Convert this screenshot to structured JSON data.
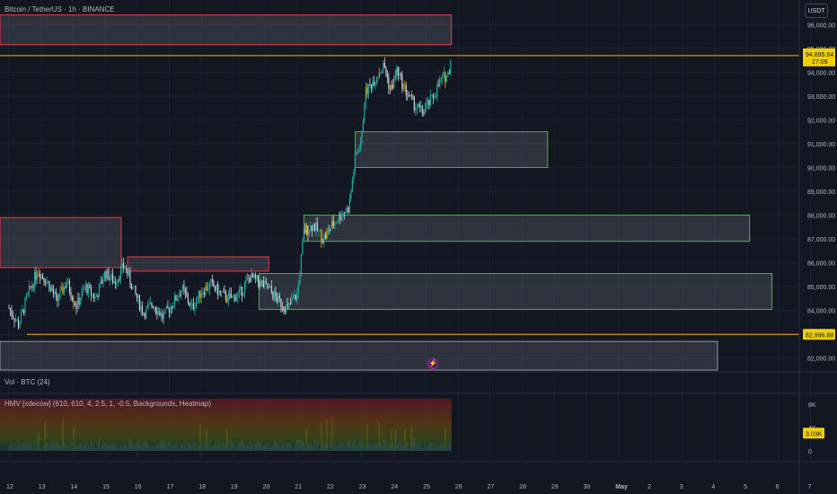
{
  "header": {
    "symbol": "Bitcoin / TetherUS · 1h · BINANCE",
    "currency_button": "USDT"
  },
  "volume_pane": {
    "label": "Vol · BTC (24)"
  },
  "hmv_pane": {
    "label": "HMV [xdecow] (610, 610, 4, 2.5, 1, -0.5, Backgrounds, Heatmap)"
  },
  "price_tags": {
    "last_price": "94,695.64",
    "countdown": "27:09",
    "support_level": "82,996.88",
    "volume_value": "3.03K"
  },
  "colors": {
    "background": "#131722",
    "up": "#26a69a",
    "down": "#c8ccd6",
    "supply_zone": "#f23645",
    "demand_zone": "#4caf50",
    "level_line": "#f0b90b",
    "tag_bg": "#f0d000"
  },
  "chart_data": [
    {
      "type": "candlestick",
      "ylim": [
        81500,
        96500
      ],
      "x_ticks": [
        "12",
        "13",
        "14",
        "15",
        "16",
        "17",
        "18",
        "19",
        "20",
        "21",
        "22",
        "23",
        "24",
        "25",
        "26",
        "27",
        "28",
        "29",
        "30",
        "May",
        "2",
        "3",
        "4",
        "5",
        "6",
        "7"
      ],
      "y_ticks": [
        "96,000.00",
        "95,000.00",
        "94,000.00",
        "93,000.00",
        "92,000.00",
        "91,000.00",
        "90,000.00",
        "89,000.00",
        "88,000.00",
        "87,000.00",
        "86,000.00",
        "85,000.00",
        "84,000.00",
        "83,000.00",
        "82,000.00"
      ],
      "price_path": [
        {
          "day": 12.0,
          "price": 84100
        },
        {
          "day": 12.3,
          "price": 83400
        },
        {
          "day": 12.6,
          "price": 84700
        },
        {
          "day": 12.9,
          "price": 85700
        },
        {
          "day": 13.2,
          "price": 85200
        },
        {
          "day": 13.5,
          "price": 84400
        },
        {
          "day": 13.8,
          "price": 85200
        },
        {
          "day": 14.1,
          "price": 84200
        },
        {
          "day": 14.4,
          "price": 85000
        },
        {
          "day": 14.7,
          "price": 84500
        },
        {
          "day": 15.0,
          "price": 85600
        },
        {
          "day": 15.3,
          "price": 85200
        },
        {
          "day": 15.6,
          "price": 85900
        },
        {
          "day": 15.9,
          "price": 84800
        },
        {
          "day": 16.2,
          "price": 83900
        },
        {
          "day": 16.5,
          "price": 84300
        },
        {
          "day": 16.8,
          "price": 83700
        },
        {
          "day": 17.1,
          "price": 84300
        },
        {
          "day": 17.4,
          "price": 84900
        },
        {
          "day": 17.7,
          "price": 84100
        },
        {
          "day": 18.0,
          "price": 84800
        },
        {
          "day": 18.3,
          "price": 85100
        },
        {
          "day": 18.6,
          "price": 84700
        },
        {
          "day": 18.9,
          "price": 84500
        },
        {
          "day": 19.2,
          "price": 84700
        },
        {
          "day": 19.5,
          "price": 85400
        },
        {
          "day": 19.8,
          "price": 85200
        },
        {
          "day": 20.1,
          "price": 84900
        },
        {
          "day": 20.4,
          "price": 84400
        },
        {
          "day": 20.7,
          "price": 84100
        },
        {
          "day": 21.0,
          "price": 84700
        },
        {
          "day": 21.2,
          "price": 87300
        },
        {
          "day": 21.5,
          "price": 87600
        },
        {
          "day": 21.8,
          "price": 87000
        },
        {
          "day": 22.1,
          "price": 87600
        },
        {
          "day": 22.4,
          "price": 88100
        },
        {
          "day": 22.6,
          "price": 88300
        },
        {
          "day": 22.8,
          "price": 90400
        },
        {
          "day": 23.0,
          "price": 91200
        },
        {
          "day": 23.1,
          "price": 93100
        },
        {
          "day": 23.4,
          "price": 93700
        },
        {
          "day": 23.7,
          "price": 94300
        },
        {
          "day": 23.9,
          "price": 93200
        },
        {
          "day": 24.1,
          "price": 94100
        },
        {
          "day": 24.3,
          "price": 93400
        },
        {
          "day": 24.6,
          "price": 92700
        },
        {
          "day": 24.9,
          "price": 92300
        },
        {
          "day": 25.2,
          "price": 92900
        },
        {
          "day": 25.5,
          "price": 93700
        },
        {
          "day": 25.7,
          "price": 93900
        },
        {
          "day": 25.8,
          "price": 94700
        }
      ],
      "zones": [
        {
          "kind": "supply",
          "x0": 11.6,
          "x1": 25.8,
          "y0": 95150,
          "y1": 96400
        },
        {
          "kind": "supply",
          "x0": 11.6,
          "x1": 15.5,
          "y0": 85800,
          "y1": 87900
        },
        {
          "kind": "supply",
          "x0": 15.7,
          "x1": 20.1,
          "y0": 85650,
          "y1": 86250
        },
        {
          "kind": "demand",
          "x0": 22.8,
          "x1": 28.8,
          "y0": 90000,
          "y1": 91500
        },
        {
          "kind": "demand",
          "x0": 21.2,
          "x1": 35.1,
          "y0": 86900,
          "y1": 88000
        },
        {
          "kind": "demand",
          "x0": 19.8,
          "x1": 35.8,
          "y0": 84050,
          "y1": 85550
        },
        {
          "kind": "neutral",
          "x0": 11.6,
          "x1": 34.1,
          "y0": 81500,
          "y1": 82700
        }
      ],
      "levels": [
        {
          "price": 94695.64,
          "label": "94,695.64"
        },
        {
          "price": 82996.88,
          "label": "82,996.88"
        }
      ]
    },
    {
      "type": "bar",
      "ylim": [
        0,
        8000
      ],
      "y_ticks": [
        "8K",
        "4K",
        "0"
      ],
      "last_value": "3.03K"
    }
  ]
}
